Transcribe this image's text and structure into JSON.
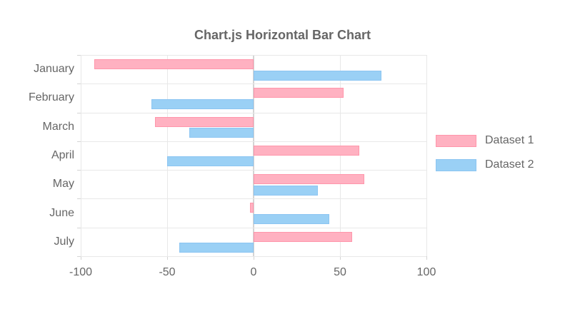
{
  "chart_data": {
    "type": "bar",
    "orientation": "horizontal",
    "title": "Chart.js Horizontal Bar Chart",
    "categories": [
      "January",
      "February",
      "March",
      "April",
      "May",
      "June",
      "July"
    ],
    "series": [
      {
        "name": "Dataset 1",
        "fill": "#FFB1C1",
        "border": "#FF96AB",
        "values": [
          -92,
          52,
          -57,
          61,
          64,
          -2,
          57
        ]
      },
      {
        "name": "Dataset 2",
        "fill": "#9AD0F5",
        "border": "#8CC5F2",
        "values": [
          74,
          -59,
          -37,
          -50,
          37,
          44,
          -43
        ]
      }
    ],
    "xlim": [
      -100,
      100
    ],
    "x_ticks": [
      -100,
      -50,
      0,
      50,
      100
    ],
    "grid": true,
    "legend_position": "right",
    "colors": {
      "text": "#666666",
      "grid": "#e8e8e8",
      "zero_line": "#d4d4d4",
      "tick_mark": "#d4d4d4"
    }
  }
}
